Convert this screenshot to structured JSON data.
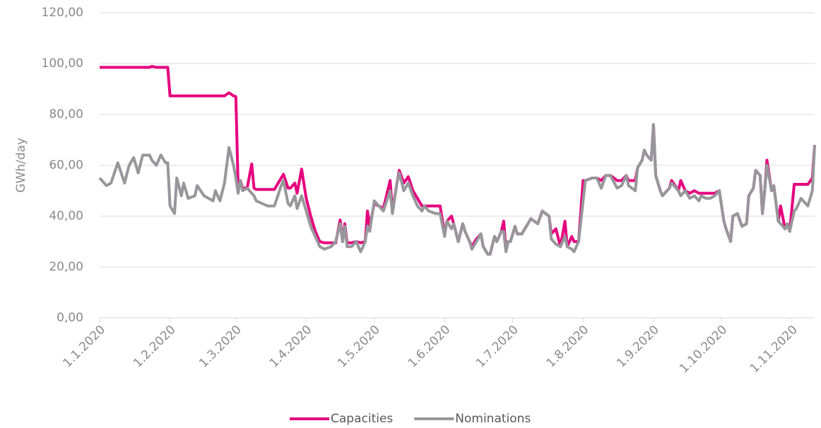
{
  "chart_data": {
    "type": "line",
    "y_label": "GWh/day",
    "x": [
      "1.1.2020",
      "4.1.2020",
      "6.1.2020",
      "9.1.2020",
      "12.1.2020",
      "14.1.2020",
      "16.1.2020",
      "18.1.2020",
      "20.1.2020",
      "23.1.2020",
      "24.1.2020",
      "26.1.2020",
      "28.1.2020",
      "30.1.2020",
      "31.1.2020",
      "1.2.2020",
      "3.2.2020",
      "4.2.2020",
      "6.2.2020",
      "7.2.2020",
      "9.2.2020",
      "12.2.2020",
      "13.2.2020",
      "16.2.2020",
      "20.2.2020",
      "21.2.2020",
      "23.2.2020",
      "25.2.2020",
      "27.2.2020",
      "29.2.2020",
      "1.3.2020",
      "2.3.2020",
      "3.3.2020",
      "4.3.2020",
      "6.3.2020",
      "8.3.2020",
      "9.3.2020",
      "10.3.2020",
      "15.3.2020",
      "18.3.2020",
      "21.3.2020",
      "22.3.2020",
      "24.3.2020",
      "25.3.2020",
      "27.3.2020",
      "28.3.2020",
      "30.3.2020",
      "1.4.2020",
      "3.4.2020",
      "5.4.2020",
      "7.4.2020",
      "9.4.2020",
      "12.4.2020",
      "14.4.2020",
      "16.4.2020",
      "17.4.2020",
      "18.4.2020",
      "19.4.2020",
      "21.4.2020",
      "23.4.2020",
      "25.4.2020",
      "27.4.2020",
      "28.4.2020",
      "29.4.2020",
      "1.5.2020",
      "3.5.2020",
      "5.5.2020",
      "8.5.2020",
      "9.5.2020",
      "11.5.2020",
      "12.5.2020",
      "14.5.2020",
      "16.5.2020",
      "18.5.2020",
      "20.5.2020",
      "22.5.2020",
      "23.5.2020",
      "25.5.2020",
      "28.5.2020",
      "30.5.2020",
      "1.6.2020",
      "2.6.2020",
      "4.6.2020",
      "5.6.2020",
      "7.6.2020",
      "9.6.2020",
      "10.6.2020",
      "12.6.2020",
      "13.6.2020",
      "15.6.2020",
      "17.6.2020",
      "18.6.2020",
      "20.6.2020",
      "21.6.2020",
      "23.6.2020",
      "24.6.2020",
      "26.6.2020",
      "27.6.2020",
      "28.6.2020",
      "29.6.2020",
      "30.6.2020",
      "2.7.2020",
      "3.7.2020",
      "5.7.2020",
      "7.7.2020",
      "9.7.2020",
      "12.7.2020",
      "14.7.2020",
      "17.7.2020",
      "18.7.2020",
      "20.7.2020",
      "22.7.2020",
      "24.7.2020",
      "25.7.2020",
      "27.7.2020",
      "28.7.2020",
      "30.7.2020",
      "1.8.2020",
      "2.8.2020",
      "5.8.2020",
      "7.8.2020",
      "9.8.2020",
      "11.8.2020",
      "13.8.2020",
      "16.8.2020",
      "18.8.2020",
      "20.8.2020",
      "21.8.2020",
      "24.8.2020",
      "25.8.2020",
      "27.8.2020",
      "28.8.2020",
      "29.8.2020",
      "31.8.2020",
      "1.9.2020",
      "2.9.2020",
      "4.9.2020",
      "5.9.2020",
      "8.9.2020",
      "9.9.2020",
      "12.9.2020",
      "13.9.2020",
      "15.9.2020",
      "17.9.2020",
      "19.9.2020",
      "21.9.2020",
      "22.9.2020",
      "24.9.2020",
      "26.9.2020",
      "28.9.2020",
      "30.9.2020",
      "2.10.2020",
      "3.10.2020",
      "5.10.2020",
      "6.10.2020",
      "8.10.2020",
      "10.10.2020",
      "12.10.2020",
      "13.10.2020",
      "15.10.2020",
      "16.10.2020",
      "18.10.2020",
      "19.10.2020",
      "20.10.2020",
      "21.10.2020",
      "23.10.2020",
      "24.10.2020",
      "26.10.2020",
      "27.10.2020",
      "29.10.2020",
      "30.10.2020",
      "31.10.2020",
      "2.11.2020",
      "3.11.2020",
      "5.11.2020",
      "6.11.2020",
      "8.11.2020",
      "10.11.2020",
      "11.11.2020"
    ],
    "series": [
      {
        "name": "Capacities",
        "color": "#e6007e",
        "values": [
          98.5,
          98.5,
          98.5,
          98.5,
          98.5,
          98.5,
          98.5,
          98.5,
          98.5,
          98.5,
          98.9,
          98.5,
          98.5,
          98.5,
          98.5,
          87.3,
          87.3,
          87.3,
          87.3,
          87.3,
          87.3,
          87.3,
          87.3,
          87.3,
          87.3,
          87.3,
          87.3,
          87.3,
          88.5,
          87.3,
          87,
          52,
          54,
          51,
          51,
          60.5,
          51,
          50.5,
          50.5,
          50.5,
          55,
          56.5,
          51,
          51,
          53,
          49,
          58.5,
          47,
          40,
          34,
          30,
          29.5,
          29.5,
          29.5,
          38.5,
          30,
          37,
          29.5,
          29.5,
          30,
          29.5,
          30,
          42,
          36,
          45,
          44,
          43,
          54,
          42,
          53,
          58,
          53,
          55.5,
          50,
          47,
          44,
          44,
          44,
          44,
          44,
          33,
          38,
          40,
          37,
          30,
          37,
          34,
          30,
          28,
          31,
          33,
          28,
          25,
          25,
          32,
          30,
          34,
          38,
          27,
          30,
          30,
          36,
          33,
          33,
          36,
          39,
          37,
          42,
          40,
          33,
          35,
          28,
          38,
          28,
          32,
          30,
          30,
          54,
          54,
          55,
          55,
          54,
          56,
          56,
          54,
          54,
          56,
          54,
          54,
          59,
          62,
          66,
          64,
          62,
          76,
          56,
          50,
          48,
          51,
          54,
          50,
          54,
          50,
          49,
          50,
          49,
          49,
          49,
          49,
          49,
          50,
          38,
          35,
          30,
          40,
          41,
          36,
          37,
          48,
          51,
          58,
          56,
          41,
          50,
          62,
          50,
          52,
          38,
          44,
          35,
          37,
          34,
          52.5,
          52.5,
          52.5,
          52.5,
          52.5,
          55,
          68
        ]
      },
      {
        "name": "Nominations",
        "color": "#97979b",
        "values": [
          55,
          52,
          53,
          61,
          53,
          60,
          63,
          57,
          64,
          64,
          62,
          60,
          64,
          61,
          61,
          44,
          41,
          55,
          48,
          53,
          47,
          48,
          52,
          48,
          46,
          50,
          46,
          53,
          67,
          60,
          55,
          49,
          54,
          50,
          51,
          49,
          48,
          46,
          44,
          44,
          52,
          54,
          45,
          44,
          48,
          43,
          48,
          42,
          36,
          32,
          28,
          27,
          28,
          30,
          37,
          30,
          36,
          28,
          28,
          30,
          26,
          30,
          36,
          34,
          46,
          44,
          42,
          50,
          41,
          53,
          57,
          50,
          53,
          48,
          44,
          42,
          44,
          42,
          41,
          41,
          32,
          38,
          35,
          37,
          30,
          37,
          34,
          30,
          27,
          30,
          33,
          28,
          25,
          25,
          32,
          30,
          34,
          34,
          26,
          30,
          30,
          36,
          33,
          33,
          36,
          39,
          37,
          42,
          40,
          31,
          29,
          28,
          32,
          28,
          27,
          26,
          30,
          46,
          54,
          55,
          55,
          51,
          56,
          56,
          51,
          52,
          56,
          52,
          50,
          59,
          62,
          66,
          64,
          62,
          76,
          56,
          50,
          48,
          51,
          53,
          50,
          48,
          50,
          47,
          48,
          46,
          48,
          47,
          47,
          48,
          50,
          38,
          35,
          30,
          40,
          41,
          36,
          37,
          48,
          51,
          58,
          56,
          41,
          50,
          60,
          50,
          52,
          38,
          37,
          35,
          37,
          34,
          42,
          43,
          47,
          46,
          44,
          50,
          68
        ]
      }
    ],
    "xlim": [
      "1.1.2020",
      "11.11.2020"
    ],
    "xticks": [
      "1.1.2020",
      "1.2.2020",
      "1.3.2020",
      "1.4.2020",
      "1.5.2020",
      "1.6.2020",
      "1.7.2020",
      "1.8.2020",
      "1.9.2020",
      "1.10.2020",
      "1.11.2020"
    ],
    "ylim": [
      0,
      120
    ],
    "yticks": [
      {
        "value": 0,
        "label": "0,00"
      },
      {
        "value": 20,
        "label": "20,00"
      },
      {
        "value": 40,
        "label": "40,00"
      },
      {
        "value": 60,
        "label": "60,00"
      },
      {
        "value": 80,
        "label": "80,00"
      },
      {
        "value": 100,
        "label": "100,00"
      },
      {
        "value": 120,
        "label": "120,00"
      }
    ],
    "grid": true,
    "legend": "bottom"
  }
}
